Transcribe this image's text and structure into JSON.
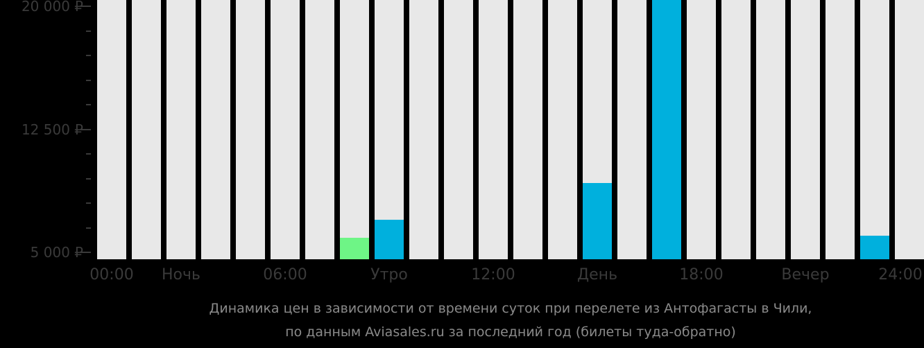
{
  "chart_data": {
    "type": "bar",
    "title": "Динамика цен в зависимости от времени суток при перелете из Антофагасты в Чили, по данным Aviasales.ru за последний год (билеты туда-обратно)",
    "xlabel": "",
    "ylabel": "",
    "ylim": [
      4577,
      20380
    ],
    "y_ticks": [
      5000,
      12500,
      20000
    ],
    "y_tick_labels": [
      "5 000 ₽",
      "12 500 ₽",
      "20 000 ₽"
    ],
    "x_tick_labels": [
      "00:00",
      "Ночь",
      "06:00",
      "Утро",
      "12:00",
      "День",
      "18:00",
      "Вечер",
      "24:00"
    ],
    "categories": [
      "0",
      "1",
      "2",
      "3",
      "4",
      "5",
      "6",
      "7",
      "8",
      "9",
      "10",
      "11",
      "12",
      "13",
      "14",
      "15",
      "16",
      "17",
      "18",
      "19",
      "20",
      "21",
      "22",
      "23"
    ],
    "values": [
      null,
      null,
      null,
      null,
      null,
      null,
      null,
      5890,
      7000,
      null,
      null,
      null,
      null,
      null,
      9230,
      null,
      20400,
      null,
      null,
      null,
      null,
      null,
      6000,
      null
    ],
    "bar_colors": {
      "cheapest": "#6ef586",
      "normal": "#00b0dd",
      "empty": "#e8e8e8"
    },
    "cheapest_index": 7,
    "grid": false,
    "legend": "none"
  },
  "axis": {
    "y_labels": [
      "20 000 ₽",
      "12 500 ₽",
      "5 000 ₽"
    ],
    "x_labels": [
      "00:00",
      "Ночь",
      "06:00",
      "Утро",
      "12:00",
      "День",
      "18:00",
      "Вечер",
      "24:00"
    ]
  },
  "caption": {
    "line1": "Динамика цен в зависимости от времени суток при перелете из Антофагасты в Чили,",
    "line2": "по данным Aviasales.ru за последний год (билеты туда-обратно)"
  }
}
